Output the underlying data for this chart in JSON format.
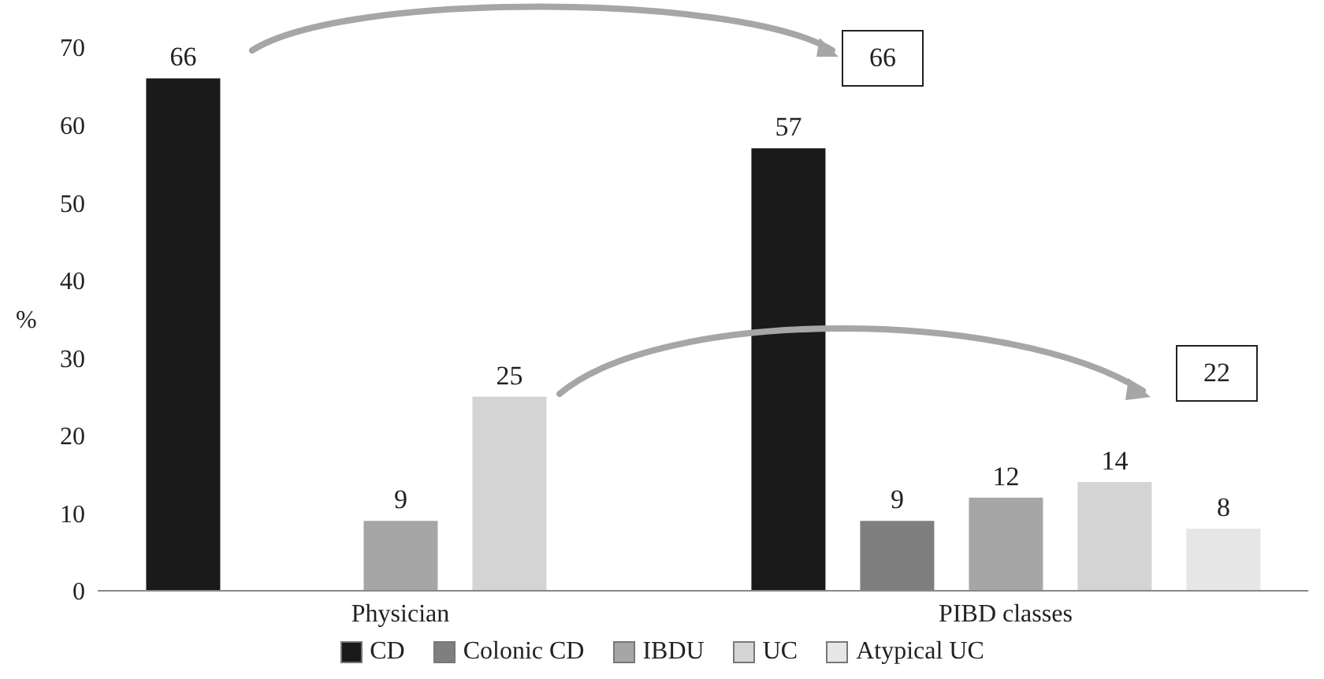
{
  "chart_data": {
    "type": "bar",
    "ylabel": "%",
    "categories": [
      "Physician",
      "PIBD classes"
    ],
    "series": [
      {
        "name": "CD",
        "color": "#1a1a1a",
        "values": [
          66,
          57
        ]
      },
      {
        "name": "Colonic CD",
        "color": "#7f7f7f",
        "values": [
          null,
          9
        ]
      },
      {
        "name": "IBDU",
        "color": "#a6a6a6",
        "values": [
          9,
          12
        ]
      },
      {
        "name": "UC",
        "color": "#d4d4d4",
        "values": [
          25,
          14
        ]
      },
      {
        "name": "Atypical UC",
        "color": "#e6e6e6",
        "values": [
          null,
          8
        ]
      }
    ],
    "ylim": [
      0,
      70
    ],
    "yticks": [
      0,
      10,
      20,
      30,
      40,
      50,
      60,
      70
    ],
    "legend": "bottom",
    "data_labels": true,
    "annotations": [
      "66",
      "22"
    ]
  }
}
